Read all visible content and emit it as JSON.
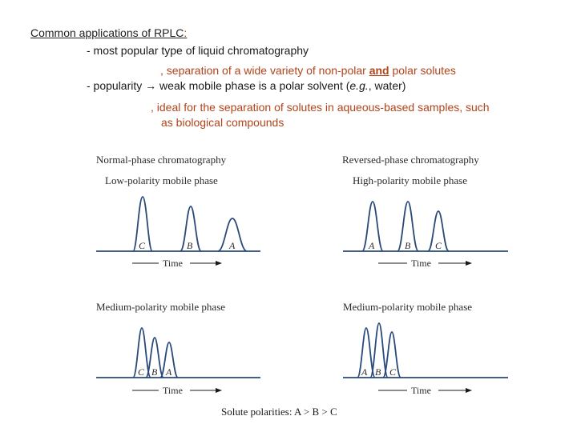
{
  "text": {
    "heading": "Common applications of RPLC",
    "heading_colon": ":",
    "line1": "- most popular type of liquid chromatography",
    "line2_pre": ", separation of a wide variety of non-polar ",
    "line2_and": "and",
    "line2_post": " polar solutes",
    "line3_pre": "- popularity ",
    "line3_arrow": "→",
    "line3_a": " weak mobile phase is a polar solvent (",
    "line3_eg": "e.g.",
    "line3_b": ", water)",
    "line4": ", ideal for the separation of solutes in aqueous-based samples, such",
    "line5": "as biological compounds"
  },
  "figure": {
    "normal_title": "Normal-phase chromatography",
    "reversed_title": "Reversed-phase chromatography",
    "low_polarity": "Low-polarity mobile phase",
    "high_polarity": "High-polarity mobile phase",
    "medium_polarity_left": "Medium-polarity mobile phase",
    "medium_polarity_right": "Medium-polarity mobile phase",
    "time_label": "Time",
    "panels": {
      "tl": [
        "C",
        "B",
        "A"
      ],
      "tr": [
        "A",
        "B",
        "C"
      ],
      "bl": [
        "C",
        "B",
        "A"
      ],
      "br": [
        "A",
        "B",
        "C"
      ]
    },
    "footer": "Solute polarities: A > B > C"
  },
  "colors": {
    "accent": "#b0441a",
    "line": "#2a4a7a"
  }
}
